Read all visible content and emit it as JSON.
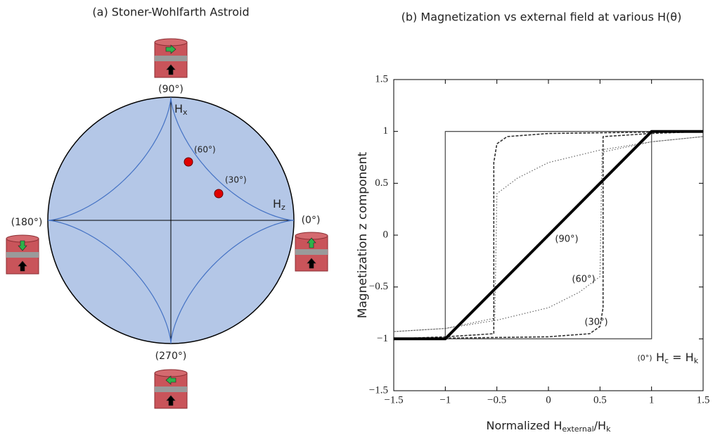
{
  "chart_data": [
    {
      "type": "astroid",
      "title": "(a) Stoner-Wohlfarth Astroid",
      "labels": {
        "top": "(90°)",
        "right": "(0°)",
        "left": "(180°)",
        "bottom": "(270°)",
        "hx": [
          "H",
          "x"
        ],
        "hz": [
          "H",
          "z"
        ],
        "dot60": "(60°)",
        "dot30": "(30°)"
      },
      "fill": "#b4c7e7",
      "curve_color": "#4472c4",
      "dot_color": "#e00000"
    },
    {
      "type": "line",
      "title": "(b) Magnetization vs external field at various H(θ)",
      "xlabel": [
        "Normalized H",
        "external",
        "/H",
        "k"
      ],
      "ylabel": "Magnetization z component",
      "xlim": [
        -1.5,
        1.5
      ],
      "ylim": [
        -1.5,
        1.5
      ],
      "xticks": [
        {
          "value": -1.5,
          "label": "−1.5"
        },
        {
          "value": -1,
          "label": "−1"
        },
        {
          "value": -0.5,
          "label": "−0.5"
        },
        0,
        0.5,
        1,
        1.5
      ],
      "yticks": [
        {
          "value": -1.5,
          "label": "−1.5"
        },
        {
          "value": -1,
          "label": "−1"
        },
        {
          "value": -0.5,
          "label": "−0.5"
        },
        0,
        0.5,
        1,
        1.5
      ],
      "series": [
        {
          "name": "(0°)",
          "color": "#555555",
          "style": "solid",
          "x": [
            -1.5,
            1,
            1,
            1.5,
            -1,
            -1,
            -1.5
          ],
          "values": [
            -1,
            -1,
            1,
            1,
            1,
            -1,
            -1
          ]
        },
        {
          "name": "(30°)",
          "color": "#333333",
          "style": "dashed",
          "x": [
            -1.5,
            0,
            0.4,
            0.5,
            0.53,
            0.53,
            1,
            1.5,
            0,
            -0.4,
            -0.5,
            -0.53,
            -0.53,
            -1,
            -1.5
          ],
          "values": [
            -1,
            -0.98,
            -0.95,
            -0.88,
            -0.7,
            0.95,
            0.98,
            1,
            0.98,
            0.95,
            0.88,
            0.7,
            -0.95,
            -0.98,
            -1
          ]
        },
        {
          "name": "(60°)",
          "color": "#666666",
          "style": "dotted",
          "x": [
            -1.5,
            -1,
            -0.5,
            0,
            0.3,
            0.5,
            0.52,
            1,
            1.5,
            1,
            0.5,
            0,
            -0.3,
            -0.5,
            -0.52,
            -1,
            -1.5
          ],
          "values": [
            -0.93,
            -0.9,
            -0.82,
            -0.7,
            -0.55,
            -0.4,
            0.8,
            0.9,
            0.95,
            0.9,
            0.82,
            0.7,
            0.55,
            0.4,
            -0.8,
            -0.9,
            -0.93
          ]
        },
        {
          "name": "(90°)",
          "color": "#000000",
          "style": "thick",
          "x": [
            -1.5,
            -1,
            1,
            1.5
          ],
          "values": [
            -1,
            -1,
            1,
            1
          ]
        }
      ],
      "annotation": [
        "H",
        "c",
        " = H",
        "k"
      ]
    }
  ]
}
